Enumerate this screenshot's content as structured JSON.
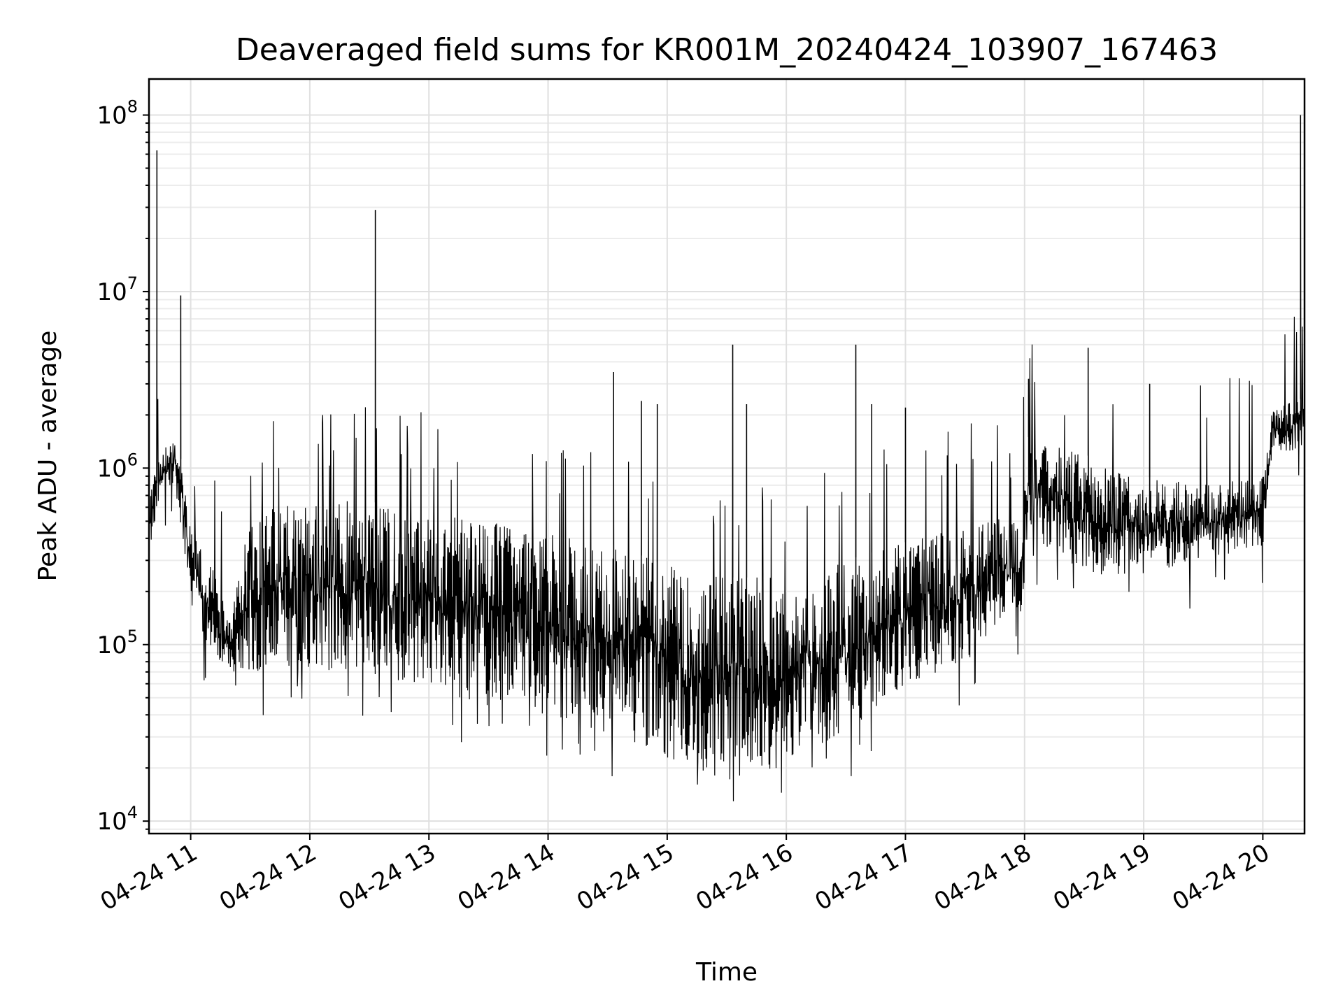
{
  "chart_data": {
    "type": "line",
    "title": "Deaveraged field sums for KR001M_20240424_103907_167463",
    "xlabel": "Time",
    "ylabel": "Peak ADU - average",
    "yscale": "log",
    "ylim": [
      8500,
      160000000
    ],
    "xlim": [
      "2024-04-24 10:39",
      "2024-04-24 20:21"
    ],
    "grid": "major and minor",
    "x_ticks": [
      {
        "date": "2024-04-24 11:00",
        "label": "04-24 11"
      },
      {
        "date": "2024-04-24 12:00",
        "label": "04-24 12"
      },
      {
        "date": "2024-04-24 13:00",
        "label": "04-24 13"
      },
      {
        "date": "2024-04-24 14:00",
        "label": "04-24 14"
      },
      {
        "date": "2024-04-24 15:00",
        "label": "04-24 15"
      },
      {
        "date": "2024-04-24 16:00",
        "label": "04-24 16"
      },
      {
        "date": "2024-04-24 17:00",
        "label": "04-24 17"
      },
      {
        "date": "2024-04-24 18:00",
        "label": "04-24 18"
      },
      {
        "date": "2024-04-24 19:00",
        "label": "04-24 19"
      },
      {
        "date": "2024-04-24 20:00",
        "label": "04-24 20"
      }
    ],
    "y_ticks": [
      {
        "value": 10000,
        "base": "10",
        "exp": "4"
      },
      {
        "value": 100000,
        "base": "10",
        "exp": "5"
      },
      {
        "value": 1000000,
        "base": "10",
        "exp": "6"
      },
      {
        "value": 10000000,
        "base": "10",
        "exp": "7"
      },
      {
        "value": 100000000,
        "base": "10",
        "exp": "8"
      }
    ],
    "series": [
      {
        "color": "#000000",
        "band": [
          {
            "x": "2024-04-24 10:39",
            "lo": 300000,
            "hi": 700000
          },
          {
            "x": "2024-04-24 10:45",
            "lo": 700000,
            "hi": 1300000
          },
          {
            "x": "2024-04-24 10:52",
            "lo": 800000,
            "hi": 1600000
          },
          {
            "x": "2024-04-24 10:56",
            "lo": 400000,
            "hi": 1000000
          },
          {
            "x": "2024-04-24 11:00",
            "lo": 150000,
            "hi": 500000
          },
          {
            "x": "2024-04-24 11:10",
            "lo": 90000,
            "hi": 300000
          },
          {
            "x": "2024-04-24 11:20",
            "lo": 70000,
            "hi": 130000
          },
          {
            "x": "2024-04-24 11:30",
            "lo": 70000,
            "hi": 600000
          },
          {
            "x": "2024-04-24 12:00",
            "lo": 70000,
            "hi": 650000
          },
          {
            "x": "2024-04-24 12:30",
            "lo": 65000,
            "hi": 650000
          },
          {
            "x": "2024-04-24 13:00",
            "lo": 55000,
            "hi": 550000
          },
          {
            "x": "2024-04-24 13:30",
            "lo": 45000,
            "hi": 500000
          },
          {
            "x": "2024-04-24 14:00",
            "lo": 40000,
            "hi": 420000
          },
          {
            "x": "2024-04-24 14:30",
            "lo": 30000,
            "hi": 380000
          },
          {
            "x": "2024-04-24 15:00",
            "lo": 22000,
            "hi": 280000
          },
          {
            "x": "2024-04-24 15:30",
            "lo": 17000,
            "hi": 240000
          },
          {
            "x": "2024-04-24 15:55",
            "lo": 20000,
            "hi": 240000
          },
          {
            "x": "2024-04-24 16:00",
            "lo": 22000,
            "hi": 200000
          },
          {
            "x": "2024-04-24 16:30",
            "lo": 30000,
            "hi": 300000
          },
          {
            "x": "2024-04-24 17:00",
            "lo": 60000,
            "hi": 380000
          },
          {
            "x": "2024-04-24 17:30",
            "lo": 80000,
            "hi": 480000
          },
          {
            "x": "2024-04-24 17:59",
            "lo": 150000,
            "hi": 550000
          },
          {
            "x": "2024-04-24 18:02",
            "lo": 400000,
            "hi": 1500000
          },
          {
            "x": "2024-04-24 18:30",
            "lo": 250000,
            "hi": 1200000
          },
          {
            "x": "2024-04-24 19:00",
            "lo": 250000,
            "hi": 900000
          },
          {
            "x": "2024-04-24 19:30",
            "lo": 300000,
            "hi": 800000
          },
          {
            "x": "2024-04-24 20:00",
            "lo": 350000,
            "hi": 900000
          },
          {
            "x": "2024-04-24 20:05",
            "lo": 1200000,
            "hi": 2200000
          },
          {
            "x": "2024-04-24 20:21",
            "lo": 1300000,
            "hi": 2500000
          }
        ],
        "spikes": [
          {
            "x": "2024-04-24 10:43",
            "y": 63000000
          },
          {
            "x": "2024-04-24 10:55",
            "y": 9500000
          },
          {
            "x": "2024-04-24 12:33",
            "y": 29000000
          },
          {
            "x": "2024-04-24 12:46",
            "y": 1200000
          },
          {
            "x": "2024-04-24 14:33",
            "y": 3500000
          },
          {
            "x": "2024-04-24 14:47",
            "y": 2400000
          },
          {
            "x": "2024-04-24 14:55",
            "y": 2300000
          },
          {
            "x": "2024-04-24 15:33",
            "y": 5000000
          },
          {
            "x": "2024-04-24 15:40",
            "y": 2300000
          },
          {
            "x": "2024-04-24 16:35",
            "y": 5000000
          },
          {
            "x": "2024-04-24 16:43",
            "y": 2300000
          },
          {
            "x": "2024-04-24 17:00",
            "y": 2200000
          },
          {
            "x": "2024-04-24 18:02",
            "y": 3200000
          },
          {
            "x": "2024-04-24 18:32",
            "y": 4800000
          },
          {
            "x": "2024-04-24 19:03",
            "y": 3000000
          },
          {
            "x": "2024-04-24 20:19",
            "y": 100000000
          }
        ]
      }
    ]
  }
}
